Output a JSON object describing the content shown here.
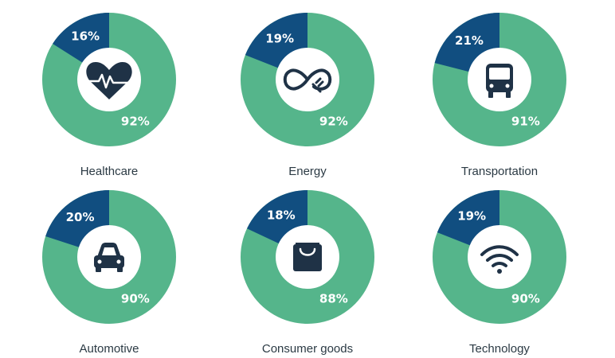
{
  "colors": {
    "ring": "#55b58b",
    "slice": "#114e80",
    "hole": "#ffffff",
    "icon": "#1f3246"
  },
  "chart_data": {
    "type": "pie",
    "charts": [
      {
        "label": "Healthcare",
        "large_value": "92%",
        "small_value": "16%",
        "large": 92,
        "small": 16,
        "icon": "heart-pulse-icon"
      },
      {
        "label": "Energy",
        "large_value": "92%",
        "small_value": "19%",
        "large": 92,
        "small": 19,
        "icon": "infinity-plug-icon"
      },
      {
        "label": "Transportation",
        "large_value": "91%",
        "small_value": "21%",
        "large": 91,
        "small": 21,
        "icon": "bus-icon"
      },
      {
        "label": "Automotive",
        "large_value": "90%",
        "small_value": "20%",
        "large": 90,
        "small": 20,
        "icon": "car-icon"
      },
      {
        "label": "Consumer goods",
        "large_value": "88%",
        "small_value": "18%",
        "large": 88,
        "small": 18,
        "icon": "shopping-bag-icon"
      },
      {
        "label": "Technology",
        "large_value": "90%",
        "small_value": "19%",
        "large": 90,
        "small": 19,
        "icon": "wifi-icon"
      }
    ]
  }
}
